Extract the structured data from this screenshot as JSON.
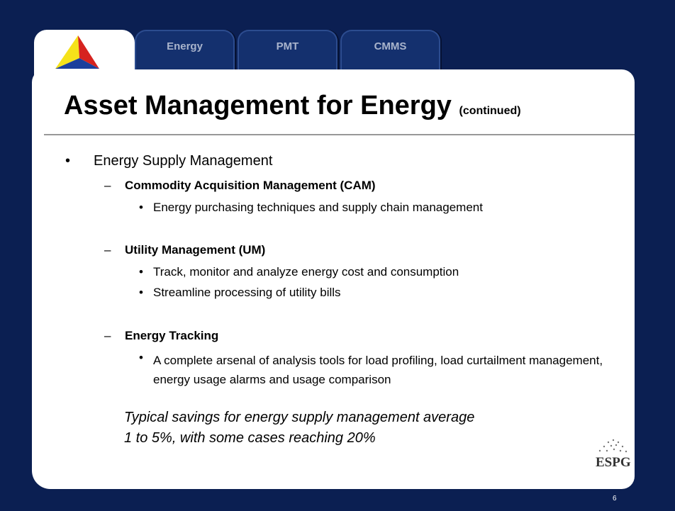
{
  "tabs": [
    "Energy",
    "PMT",
    "CMMS"
  ],
  "title": "Asset Management for Energy",
  "title_suffix": "(continued)",
  "bullet": "Energy Supply Management",
  "sections": [
    {
      "heading": "Commodity Acquisition Management (CAM)",
      "items": [
        "Energy purchasing techniques and supply chain management"
      ]
    },
    {
      "heading": "Utility Management (UM)",
      "items": [
        "Track, monitor and analyze energy cost and consumption",
        "Streamline processing of utility bills"
      ]
    },
    {
      "heading": "Energy Tracking",
      "items": [
        "A complete arsenal of analysis tools for load profiling, load curtailment management, energy usage alarms and usage comparison"
      ]
    }
  ],
  "note": [
    "Typical savings for energy supply management average",
    "1 to 5%, with some cases reaching 20%"
  ],
  "logo_text": "ESPG",
  "page_number": "6"
}
